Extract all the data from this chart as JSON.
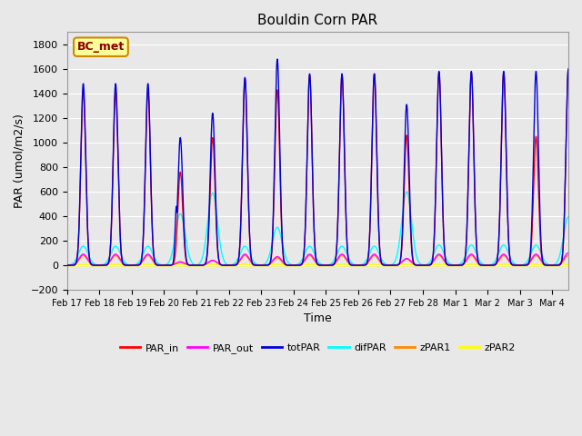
{
  "title": "Bouldin Corn PAR",
  "xlabel": "Time",
  "ylabel": "PAR (umol/m2/s)",
  "ylim": [
    -200,
    1900
  ],
  "yticks": [
    -200,
    0,
    200,
    400,
    600,
    800,
    1000,
    1200,
    1400,
    1600,
    1800
  ],
  "xtick_labels": [
    "Feb 17",
    "Feb 18",
    "Feb 19",
    "Feb 20",
    "Feb 21",
    "Feb 22",
    "Feb 23",
    "Feb 24",
    "Feb 25",
    "Feb 26",
    "Feb 27",
    "Feb 28",
    "Mar 1",
    "Mar 2",
    "Mar 3",
    "Mar 4"
  ],
  "series_colors": {
    "PAR_in": "#ff0000",
    "PAR_out": "#ff00ff",
    "totPAR": "#0000dd",
    "difPAR": "#00ffff",
    "zPAR1": "#ff8800",
    "zPAR2": "#ffff00"
  },
  "annotation_text": "BC_met",
  "annotation_color": "#8b0000",
  "annotation_bg": "#ffff99",
  "annotation_edge": "#cc8800",
  "bg_color": "#e8e8e8",
  "plot_bg_color": "#e8e8e8",
  "grid_color": "#ffffff",
  "fig_width": 6.4,
  "fig_height": 4.8,
  "dpi": 100
}
